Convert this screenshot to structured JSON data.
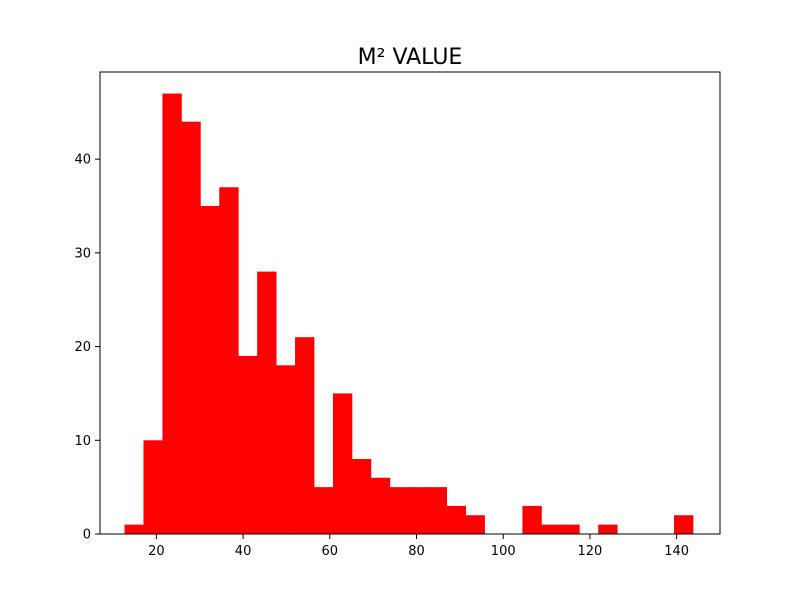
{
  "chart_data": {
    "type": "bar",
    "subtype": "histogram",
    "title": "M² VALUE",
    "xlabel": "",
    "ylabel": "",
    "bar_color": "#ff0000",
    "grid": false,
    "xlim": [
      7,
      150
    ],
    "ylim": [
      0,
      49.3
    ],
    "xticks": [
      20,
      40,
      60,
      80,
      100,
      120,
      140
    ],
    "yticks": [
      0,
      10,
      20,
      30,
      40
    ],
    "bin_start": 12.66,
    "bin_width": 4.37,
    "values": [
      1,
      10,
      47,
      44,
      35,
      37,
      19,
      28,
      18,
      21,
      5,
      15,
      8,
      6,
      5,
      5,
      5,
      3,
      2,
      0,
      0,
      3,
      1,
      1,
      0,
      1,
      0,
      0,
      0,
      2
    ]
  }
}
